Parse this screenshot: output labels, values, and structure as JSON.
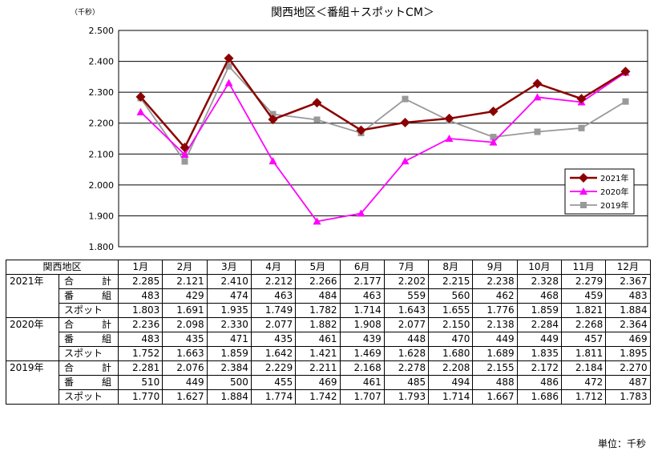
{
  "chart_data": {
    "type": "line",
    "title": "関西地区＜番組＋スポットCM＞",
    "ylabel": "（千秒）",
    "categories": [
      "1月",
      "2月",
      "3月",
      "4月",
      "5月",
      "6月",
      "7月",
      "8月",
      "9月",
      "10月",
      "11月",
      "12月"
    ],
    "ylim": [
      1800,
      2500
    ],
    "yticks": [
      1800,
      1900,
      2000,
      2100,
      2200,
      2300,
      2400,
      2500
    ],
    "ytick_labels": [
      "1.800",
      "1.900",
      "2.000",
      "2.100",
      "2.200",
      "2.300",
      "2.400",
      "2.500"
    ],
    "grid": true,
    "legend_position": "bottom-right",
    "series": [
      {
        "name": "2021年",
        "color": "#8b0000",
        "marker": "diamond",
        "values": [
          2285,
          2121,
          2410,
          2212,
          2266,
          2177,
          2202,
          2215,
          2238,
          2328,
          2279,
          2367
        ]
      },
      {
        "name": "2020年",
        "color": "#ff00ff",
        "marker": "triangle",
        "values": [
          2236,
          2098,
          2330,
          2077,
          1882,
          1908,
          2077,
          2150,
          2138,
          2284,
          2268,
          2364
        ]
      },
      {
        "name": "2019年",
        "color": "#999999",
        "marker": "square",
        "values": [
          2281,
          2076,
          2384,
          2229,
          2211,
          2168,
          2278,
          2208,
          2155,
          2172,
          2184,
          2270
        ]
      }
    ]
  },
  "table": {
    "corner": "関西地区",
    "months": [
      "1月",
      "2月",
      "3月",
      "4月",
      "5月",
      "6月",
      "7月",
      "8月",
      "9月",
      "10月",
      "11月",
      "12月"
    ],
    "groups": [
      {
        "year": "2021年",
        "rows": [
          {
            "label": "合　計",
            "values": [
              "2.285",
              "2.121",
              "2.410",
              "2.212",
              "2.266",
              "2.177",
              "2.202",
              "2.215",
              "2.238",
              "2.328",
              "2.279",
              "2.367"
            ]
          },
          {
            "label": "番　組",
            "values": [
              "483",
              "429",
              "474",
              "463",
              "484",
              "463",
              "559",
              "560",
              "462",
              "468",
              "459",
              "483"
            ]
          },
          {
            "label": "スポット",
            "values": [
              "1.803",
              "1.691",
              "1.935",
              "1.749",
              "1.782",
              "1.714",
              "1.643",
              "1.655",
              "1.776",
              "1.859",
              "1.821",
              "1.884"
            ]
          }
        ]
      },
      {
        "year": "2020年",
        "rows": [
          {
            "label": "合　計",
            "values": [
              "2.236",
              "2.098",
              "2.330",
              "2.077",
              "1.882",
              "1.908",
              "2.077",
              "2.150",
              "2.138",
              "2.284",
              "2.268",
              "2.364"
            ]
          },
          {
            "label": "番　組",
            "values": [
              "483",
              "435",
              "471",
              "435",
              "461",
              "439",
              "448",
              "470",
              "449",
              "449",
              "457",
              "469"
            ]
          },
          {
            "label": "スポット",
            "values": [
              "1.752",
              "1.663",
              "1.859",
              "1.642",
              "1.421",
              "1.469",
              "1.628",
              "1.680",
              "1.689",
              "1.835",
              "1.811",
              "1.895"
            ]
          }
        ]
      },
      {
        "year": "2019年",
        "rows": [
          {
            "label": "合　計",
            "values": [
              "2.281",
              "2.076",
              "2.384",
              "2.229",
              "2.211",
              "2.168",
              "2.278",
              "2.208",
              "2.155",
              "2.172",
              "2.184",
              "2.270"
            ]
          },
          {
            "label": "番　組",
            "values": [
              "510",
              "449",
              "500",
              "455",
              "469",
              "461",
              "485",
              "494",
              "488",
              "486",
              "472",
              "487"
            ]
          },
          {
            "label": "スポット",
            "values": [
              "1.770",
              "1.627",
              "1.884",
              "1.774",
              "1.742",
              "1.707",
              "1.793",
              "1.714",
              "1.667",
              "1.686",
              "1.712",
              "1.783"
            ]
          }
        ]
      }
    ],
    "unit_note": "単位：千秒"
  }
}
